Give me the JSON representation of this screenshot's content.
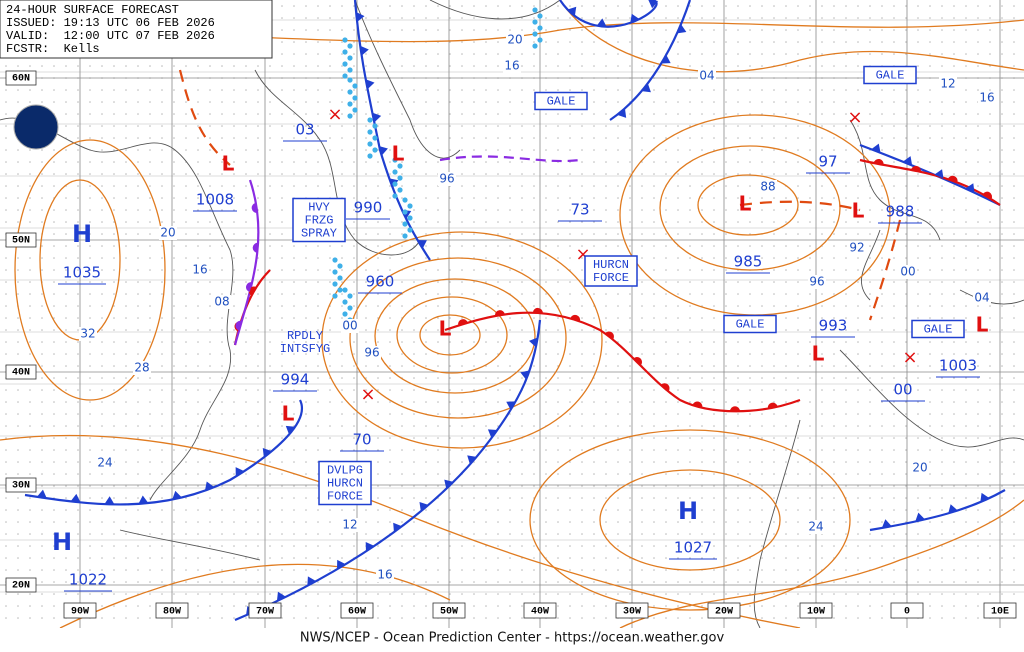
{
  "header": {
    "title": "24-HOUR SURFACE FORECAST",
    "issued": "ISSUED: 19:13 UTC 06 FEB 2026",
    "valid": "VALID:  12:00 UTC 07 FEB 2026",
    "forecaster": "FCSTR:  Kells"
  },
  "footer": "NWS/NCEP - Ocean Prediction Center - https://ocean.weather.gov",
  "latitude_labels": [
    "60N",
    "50N",
    "40N",
    "30N",
    "20N"
  ],
  "longitude_labels": [
    "90W",
    "80W",
    "70W",
    "60W",
    "50W",
    "40W",
    "30W",
    "20W",
    "10W",
    "0",
    "10E"
  ],
  "high_centers": [
    {
      "symbol": "H",
      "pressure": "1035"
    },
    {
      "symbol": "H",
      "pressure": "1022"
    },
    {
      "symbol": "H",
      "pressure": "1027"
    }
  ],
  "low_pressures": [
    "1008",
    "990",
    "960",
    "994",
    "70",
    "73",
    "985",
    "97",
    "988",
    "993",
    "1003",
    "00",
    "03"
  ],
  "isobar_labels": [
    "04",
    "12",
    "16",
    "20",
    "16",
    "20",
    "16",
    "08",
    "32",
    "28",
    "24",
    "12",
    "16",
    "00",
    "96",
    "96",
    "88",
    "92",
    "96",
    "00",
    "04",
    "20",
    "24"
  ],
  "warning_boxes": [
    [
      "GALE"
    ],
    [
      "GALE"
    ],
    [
      "GALE"
    ],
    [
      "GALE"
    ],
    [
      "HURCN",
      "FORCE"
    ],
    [
      "HVY",
      "FRZG",
      "SPRAY"
    ],
    [
      "DVLPG",
      "HURCN",
      "FORCE"
    ]
  ],
  "annotations": [
    [
      "RPDLY",
      "INTSFYG"
    ]
  ]
}
